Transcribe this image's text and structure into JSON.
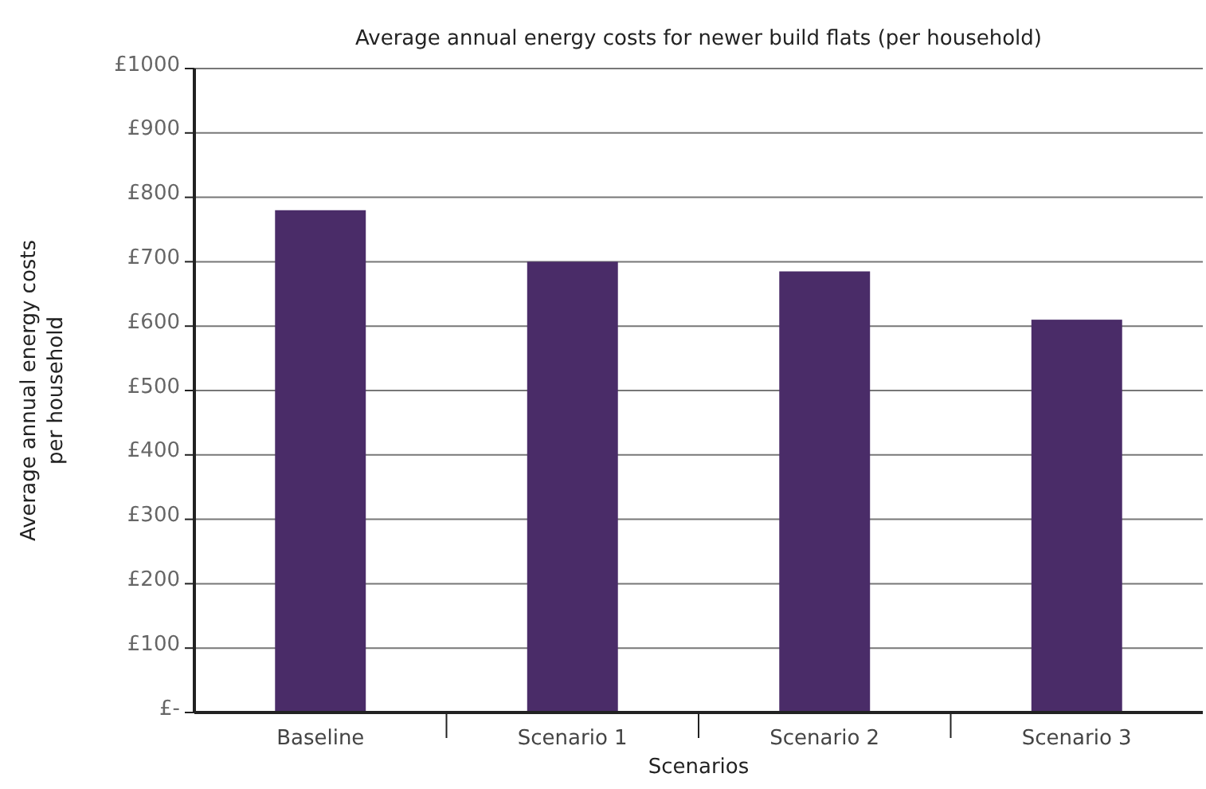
{
  "chart_data": {
    "type": "bar",
    "title": "Average annual energy costs for newer build flats (per household)",
    "xlabel": "Scenarios",
    "ylabel": "Average annual energy costs\nper household",
    "categories": [
      "Baseline",
      "Scenario 1",
      "Scenario 2",
      "Scenario 3"
    ],
    "values": [
      780,
      700,
      685,
      610
    ],
    "color": "#4a2c68",
    "ylim": [
      0,
      1000
    ],
    "yticks": [
      {
        "value": 0,
        "label": "£-"
      },
      {
        "value": 100,
        "label": "£100"
      },
      {
        "value": 200,
        "label": "£200"
      },
      {
        "value": 300,
        "label": "£300"
      },
      {
        "value": 400,
        "label": "£400"
      },
      {
        "value": 500,
        "label": "£500"
      },
      {
        "value": 600,
        "label": "£600"
      },
      {
        "value": 700,
        "label": "£700"
      },
      {
        "value": 800,
        "label": "£800"
      },
      {
        "value": 900,
        "label": "£900"
      },
      {
        "value": 1000,
        "label": "£1000"
      }
    ],
    "grid": "y"
  }
}
